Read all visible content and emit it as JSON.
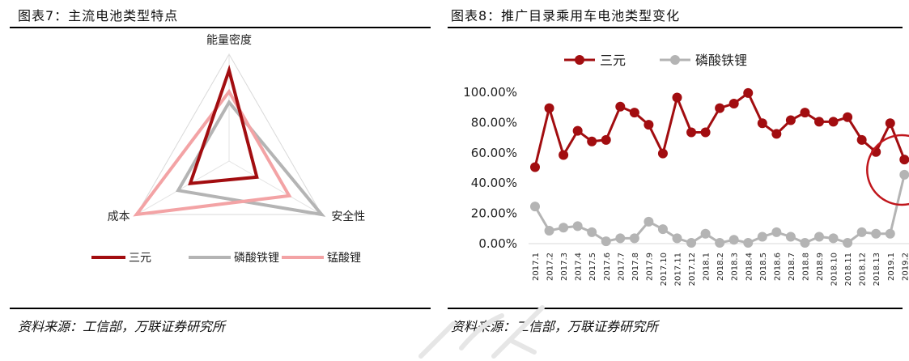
{
  "left": {
    "title": "图表7：主流电池类型特点",
    "source": "资料来源：工信部，万联证券研究所"
  },
  "right": {
    "title": "图表8：推广目录乘用车电池类型变化",
    "source": "资料来源：工信部，万联证券研究所"
  },
  "colors": {
    "ternary": "#a20d10",
    "lfp": "#b4b4b4",
    "lmo": "#f3a3a5",
    "highlight": "#c0161c"
  },
  "chart_data": [
    {
      "type": "radar",
      "axes": [
        "能量密度",
        "安全性",
        "成本"
      ],
      "series": [
        {
          "name": "三元",
          "values": [
            0.85,
            0.3,
            0.42
          ]
        },
        {
          "name": "磷酸铁锂",
          "values": [
            0.55,
            1.0,
            0.55
          ]
        },
        {
          "name": "锰酸锂",
          "values": [
            0.65,
            0.65,
            1.0
          ]
        }
      ],
      "legend": "bottom"
    },
    {
      "type": "line",
      "categories": [
        "2017.1",
        "2017.2",
        "2017.3",
        "2017.4",
        "2017.5",
        "2017.6",
        "2017.7",
        "2017.8",
        "2017.9",
        "2017.10",
        "2017.11",
        "2017.12",
        "2018.1",
        "2018.2",
        "2018.3",
        "2018.4",
        "2018.5",
        "2018.6",
        "2018.7",
        "2018.8",
        "2018.9",
        "2018.10",
        "2018.11",
        "2018.12",
        "2018.13",
        "2019.1",
        "2019.2"
      ],
      "series": [
        {
          "name": "三元",
          "values": [
            50,
            89,
            58,
            74,
            67,
            68,
            90,
            86,
            78,
            59,
            96,
            73,
            73,
            89,
            92,
            99,
            79,
            72,
            81,
            86,
            80,
            80,
            83,
            68,
            60,
            79,
            55
          ]
        },
        {
          "name": "磷酸铁锂",
          "values": [
            24,
            8,
            10,
            11,
            7,
            1,
            3,
            3,
            14,
            9,
            3,
            0,
            6,
            0,
            2,
            0,
            4,
            7,
            4,
            0,
            4,
            3,
            0,
            7,
            6,
            6,
            45
          ]
        }
      ],
      "ylim": [
        0,
        100
      ],
      "yticks": [
        "0.00%",
        "20.00%",
        "40.00%",
        "60.00%",
        "80.00%",
        "100.00%"
      ],
      "legend": "top",
      "annotation": "circle around 2019.2"
    }
  ]
}
